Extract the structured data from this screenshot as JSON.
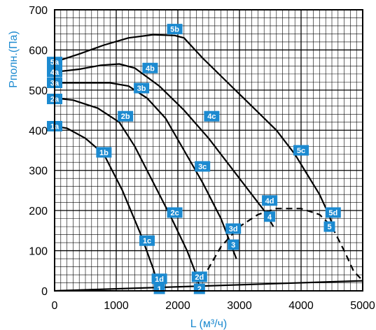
{
  "chart_data": {
    "type": "line",
    "xlabel": "L (м³/ч)",
    "ylabel": "Pполн.(Па)",
    "xlim": [
      0,
      5000
    ],
    "ylim": [
      0,
      700
    ],
    "x_ticks": [
      0,
      1000,
      2000,
      3000,
      4000,
      5000
    ],
    "y_ticks": [
      0,
      100,
      200,
      300,
      400,
      500,
      600,
      700
    ],
    "grid": true,
    "series": [
      {
        "name": "1",
        "style": "solid",
        "points": [
          [
            0,
            410
          ],
          [
            200,
            405
          ],
          [
            500,
            380
          ],
          [
            800,
            340
          ],
          [
            1100,
            250
          ],
          [
            1400,
            140
          ],
          [
            1600,
            55
          ],
          [
            1700,
            5
          ]
        ]
      },
      {
        "name": "2",
        "style": "solid",
        "points": [
          [
            0,
            480
          ],
          [
            300,
            475
          ],
          [
            700,
            455
          ],
          [
            1050,
            420
          ],
          [
            1300,
            360
          ],
          [
            1600,
            270
          ],
          [
            1900,
            180
          ],
          [
            2150,
            100
          ],
          [
            2300,
            40
          ],
          [
            2350,
            10
          ]
        ]
      },
      {
        "name": "3",
        "style": "solid",
        "points": [
          [
            0,
            518
          ],
          [
            500,
            518
          ],
          [
            900,
            518
          ],
          [
            1200,
            510
          ],
          [
            1500,
            480
          ],
          [
            1800,
            430
          ],
          [
            2100,
            350
          ],
          [
            2400,
            270
          ],
          [
            2700,
            180
          ],
          [
            2850,
            120
          ],
          [
            2950,
            80
          ]
        ]
      },
      {
        "name": "4",
        "style": "solid",
        "points": [
          [
            0,
            545
          ],
          [
            400,
            552
          ],
          [
            750,
            562
          ],
          [
            1050,
            565
          ],
          [
            1300,
            555
          ],
          [
            1700,
            510
          ],
          [
            2100,
            450
          ],
          [
            2500,
            380
          ],
          [
            2900,
            300
          ],
          [
            3200,
            240
          ],
          [
            3400,
            200
          ],
          [
            3550,
            160
          ]
        ]
      },
      {
        "name": "5",
        "style": "solid",
        "points": [
          [
            0,
            570
          ],
          [
            400,
            590
          ],
          [
            800,
            612
          ],
          [
            1200,
            630
          ],
          [
            1600,
            638
          ],
          [
            1950,
            636
          ],
          [
            2100,
            630
          ],
          [
            2400,
            580
          ],
          [
            2800,
            520
          ],
          [
            3200,
            460
          ],
          [
            3600,
            400
          ],
          [
            3900,
            340
          ],
          [
            4100,
            290
          ],
          [
            4300,
            240
          ],
          [
            4450,
            190
          ],
          [
            4520,
            160
          ]
        ]
      },
      {
        "name": "system",
        "style": "solid",
        "points": [
          [
            0,
            0
          ],
          [
            5000,
            25
          ]
        ]
      },
      {
        "name": "boundary",
        "style": "dashed",
        "points": [
          [
            2400,
            30
          ],
          [
            2700,
            110
          ],
          [
            3000,
            160
          ],
          [
            3300,
            190
          ],
          [
            3600,
            205
          ],
          [
            4000,
            205
          ],
          [
            4300,
            190
          ],
          [
            4500,
            160
          ],
          [
            4700,
            100
          ],
          [
            4850,
            50
          ],
          [
            5000,
            25
          ]
        ]
      }
    ],
    "point_labels": [
      {
        "text": "1a",
        "x": 0,
        "y": 410
      },
      {
        "text": "1b",
        "x": 800,
        "y": 345
      },
      {
        "text": "1c",
        "x": 1500,
        "y": 125
      },
      {
        "text": "1d",
        "x": 1700,
        "y": 30
      },
      {
        "text": "1",
        "x": 1700,
        "y": 5
      },
      {
        "text": "2a",
        "x": 0,
        "y": 478
      },
      {
        "text": "2b",
        "x": 1150,
        "y": 435
      },
      {
        "text": "2c",
        "x": 1950,
        "y": 195
      },
      {
        "text": "2d",
        "x": 2350,
        "y": 35
      },
      {
        "text": "2",
        "x": 2350,
        "y": 5
      },
      {
        "text": "3a",
        "x": 0,
        "y": 518
      },
      {
        "text": "3b",
        "x": 1410,
        "y": 505
      },
      {
        "text": "3c",
        "x": 2400,
        "y": 310
      },
      {
        "text": "3d",
        "x": 2900,
        "y": 155
      },
      {
        "text": "3",
        "x": 2900,
        "y": 115
      },
      {
        "text": "4a",
        "x": 0,
        "y": 545
      },
      {
        "text": "4b",
        "x": 1550,
        "y": 555
      },
      {
        "text": "4c",
        "x": 2550,
        "y": 435
      },
      {
        "text": "4d",
        "x": 3490,
        "y": 225
      },
      {
        "text": "4",
        "x": 3490,
        "y": 185
      },
      {
        "text": "5a",
        "x": 0,
        "y": 570
      },
      {
        "text": "5b",
        "x": 1950,
        "y": 652
      },
      {
        "text": "5c",
        "x": 4000,
        "y": 350
      },
      {
        "text": "5d",
        "x": 4520,
        "y": 195
      },
      {
        "text": "5",
        "x": 4460,
        "y": 160
      }
    ],
    "colors": {
      "accent": "#1c8ad0",
      "line": "#000000",
      "grid": "#000000",
      "label_bg": "#1c8ad0",
      "label_text": "#ffffff"
    }
  }
}
